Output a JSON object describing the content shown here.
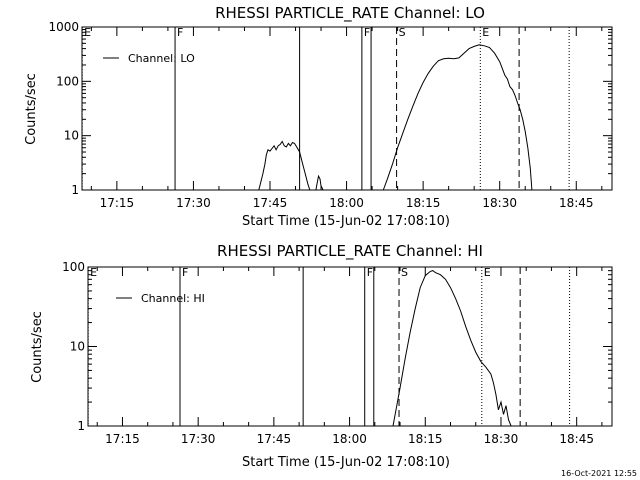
{
  "timestamp": "16-Oct-2021 12:55",
  "chart_data": [
    {
      "type": "line",
      "title": "RHESSI PARTICLE_RATE Channel: LO",
      "xlabel": "Start Time (15-Jun-02 17:08:10)",
      "ylabel": "Counts/sec",
      "x_unit": "minutes after 17:00",
      "xlim": [
        8,
        52
      ],
      "ylim": [
        1,
        1000
      ],
      "yscale": "log",
      "xticks": [
        {
          "x": 15,
          "label": "17:15"
        },
        {
          "x": 30,
          "label": "17:30"
        },
        {
          "x": 45,
          "label": "17:45"
        },
        {
          "x": 60,
          "label": "18:00"
        },
        {
          "x": 75,
          "label": "18:15"
        },
        {
          "x": 90,
          "label": "18:30"
        },
        {
          "x": 105,
          "label": "18:45"
        }
      ],
      "yticks": [
        {
          "y": 1,
          "label": "1"
        },
        {
          "y": 10,
          "label": "10"
        },
        {
          "y": 100,
          "label": "100"
        },
        {
          "y": 1000,
          "label": "1000"
        }
      ],
      "legend": {
        "label": "Channel: LO",
        "placement": "top-left"
      },
      "vlines": [
        {
          "x": 8.2,
          "style": "dotted",
          "label": "E"
        },
        {
          "x": 26.4,
          "style": "solid",
          "label": "F"
        },
        {
          "x": 50.8,
          "style": "solid",
          "label": ""
        },
        {
          "x": 63.0,
          "style": "solid",
          "label": "F"
        },
        {
          "x": 64.8,
          "style": "solid",
          "label": ""
        },
        {
          "x": 69.8,
          "style": "dashed",
          "label": "S"
        },
        {
          "x": 86.2,
          "style": "dotted",
          "label": "E"
        },
        {
          "x": 93.8,
          "style": "dashed",
          "label": ""
        },
        {
          "x": 103.6,
          "style": "dotted",
          "label": ""
        }
      ],
      "series": [
        {
          "name": "",
          "segments": [
            {
              "x": [
                42.8,
                43.2,
                43.6,
                44.0,
                44.3,
                44.6,
                45.0,
                45.4,
                45.8,
                46.2,
                46.6,
                47.0,
                47.4,
                47.8,
                48.2,
                48.6,
                49.0,
                49.4,
                49.8,
                50.2,
                50.8,
                51.4,
                51.9,
                52.4,
                52.8
              ],
              "y": [
                1.0,
                1.4,
                2.0,
                3.0,
                4.5,
                5.5,
                5.2,
                5.8,
                6.5,
                5.5,
                6.5,
                6.9,
                7.8,
                6.5,
                6.2,
                7.2,
                6.5,
                7.5,
                7.2,
                6.3,
                5.0,
                3.0,
                2.0,
                1.3,
                1.0
              ]
            },
            {
              "x": [
                54.0,
                54.2,
                54.5,
                54.8,
                55.0,
                55.4
              ],
              "y": [
                1.0,
                1.3,
                1.8,
                1.6,
                1.2,
                1.0
              ]
            },
            {
              "x": [
                67.2,
                68.0,
                69.0,
                70.0,
                71.0,
                72.0,
                73.0,
                74.0,
                75.0,
                76.0,
                77.0,
                78.0,
                79.0,
                80.0,
                81.0,
                82.0,
                83.0,
                84.0,
                85.0,
                86.0,
                87.0,
                88.0,
                89.0,
                90.0,
                91.0,
                91.5,
                92.0,
                92.5,
                93.0,
                93.5,
                94.0,
                94.5,
                95.0,
                95.5,
                96.0,
                96.3
              ],
              "y": [
                1.0,
                1.6,
                3.0,
                6.0,
                11,
                20,
                35,
                60,
                95,
                140,
                190,
                240,
                260,
                265,
                260,
                270,
                330,
                400,
                440,
                470,
                450,
                420,
                330,
                230,
                130,
                110,
                80,
                70,
                55,
                40,
                30,
                20,
                12,
                6,
                2.5,
                1.0
              ]
            }
          ]
        }
      ]
    },
    {
      "type": "line",
      "title": "RHESSI PARTICLE_RATE Channel: HI",
      "xlabel": "Start Time (15-Jun-02 17:08:10)",
      "ylabel": "Counts/sec",
      "x_unit": "minutes after 17:00",
      "xlim": [
        8,
        52
      ],
      "ylim": [
        1,
        100
      ],
      "yscale": "log",
      "xticks": [
        {
          "x": 15,
          "label": "17:15"
        },
        {
          "x": 30,
          "label": "17:30"
        },
        {
          "x": 45,
          "label": "17:45"
        },
        {
          "x": 60,
          "label": "18:00"
        },
        {
          "x": 75,
          "label": "18:15"
        },
        {
          "x": 90,
          "label": "18:30"
        },
        {
          "x": 105,
          "label": "18:45"
        }
      ],
      "yticks": [
        {
          "y": 1,
          "label": "1"
        },
        {
          "y": 10,
          "label": "10"
        },
        {
          "y": 100,
          "label": "100"
        }
      ],
      "legend": {
        "label": "Channel: HI",
        "placement": "top-left"
      },
      "vlines": [
        {
          "x": 8.2,
          "style": "dotted",
          "label": "E"
        },
        {
          "x": 26.4,
          "style": "solid",
          "label": "F"
        },
        {
          "x": 50.8,
          "style": "solid",
          "label": ""
        },
        {
          "x": 63.0,
          "style": "solid",
          "label": "F"
        },
        {
          "x": 64.8,
          "style": "solid",
          "label": ""
        },
        {
          "x": 69.8,
          "style": "dashed",
          "label": "S"
        },
        {
          "x": 86.2,
          "style": "dotted",
          "label": "E"
        },
        {
          "x": 93.8,
          "style": "dashed",
          "label": ""
        },
        {
          "x": 103.6,
          "style": "dotted",
          "label": ""
        }
      ],
      "series": [
        {
          "name": "",
          "segments": [
            {
              "x": [
                68.6,
                69.2,
                70.0,
                71.0,
                72.0,
                73.0,
                74.0,
                75.0,
                76.0,
                76.5,
                77.0,
                78.0,
                79.0,
                80.0,
                81.0,
                82.0,
                83.0,
                84.0,
                85.0,
                86.0,
                87.0,
                88.0,
                88.5,
                89.0,
                89.5,
                90.0,
                90.5,
                91.0,
                91.5,
                92.0
              ],
              "y": [
                1.0,
                1.6,
                3.0,
                7,
                15,
                30,
                55,
                78,
                88,
                90,
                85,
                80,
                70,
                55,
                40,
                28,
                18,
                12,
                8.5,
                6.5,
                5.5,
                4.5,
                3.5,
                2.5,
                1.6,
                2.0,
                1.4,
                1.8,
                1.2,
                1.0
              ]
            }
          ]
        }
      ]
    }
  ]
}
